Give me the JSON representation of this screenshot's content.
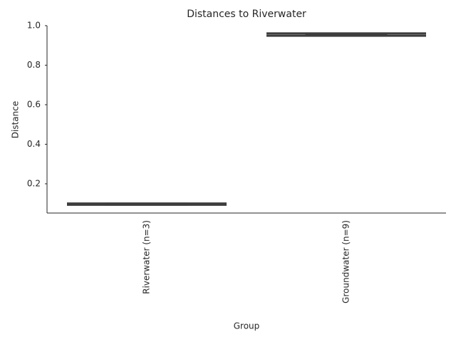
{
  "chart_data": {
    "type": "box",
    "title": "Distances to Riverwater",
    "x_label": "Group",
    "y_label": "Distance",
    "categories": [
      "Riverwater (n=3)",
      "Groundwater (n=9)"
    ],
    "boxes": [
      {
        "whislo": 0.094,
        "q1": 0.095,
        "median": 0.097,
        "q3": 0.099,
        "whishi": 0.1
      },
      {
        "whislo": 0.949,
        "q1": 0.95,
        "median": 0.955,
        "q3": 0.96,
        "whishi": 0.961
      }
    ],
    "color": "#3d3d3d",
    "ylim": [
      0.052,
      1
    ],
    "yticks": [
      0.2,
      0.4,
      0.6,
      0.8,
      {
        "value": 1,
        "label": "1.0"
      }
    ]
  }
}
